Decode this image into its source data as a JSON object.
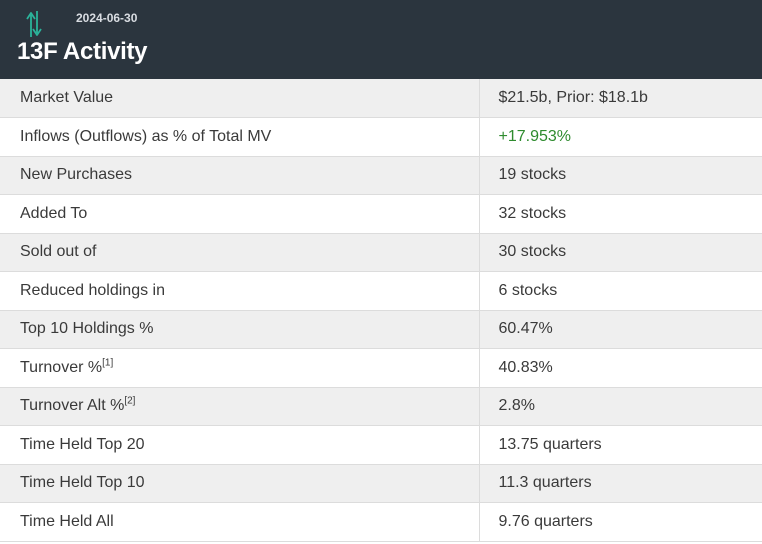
{
  "header": {
    "date": "2024-06-30",
    "title": "13F Activity",
    "icon": "up-down-arrows-icon",
    "accent_color": "#2bb39a",
    "background_color": "#2b353e"
  },
  "rows": [
    {
      "label": "Market Value",
      "sup": "",
      "value": "$21.5b, Prior: $18.1b"
    },
    {
      "label": "Inflows (Outflows) as % of Total MV",
      "sup": "",
      "value": "+17.953%",
      "value_color": "#2e8b2e"
    },
    {
      "label": "New Purchases",
      "sup": "",
      "value": "19 stocks"
    },
    {
      "label": "Added To",
      "sup": "",
      "value": "32 stocks"
    },
    {
      "label": "Sold out of",
      "sup": "",
      "value": "30 stocks"
    },
    {
      "label": "Reduced holdings in",
      "sup": "",
      "value": "6 stocks"
    },
    {
      "label": "Top 10 Holdings %",
      "sup": "",
      "value": "60.47%"
    },
    {
      "label": "Turnover %",
      "sup": "[1]",
      "value": "40.83%"
    },
    {
      "label": "Turnover Alt %",
      "sup": "[2]",
      "value": "2.8%"
    },
    {
      "label": "Time Held Top 20",
      "sup": "",
      "value": "13.75 quarters"
    },
    {
      "label": "Time Held Top 10",
      "sup": "",
      "value": "11.3 quarters"
    },
    {
      "label": "Time Held All",
      "sup": "",
      "value": "9.76 quarters"
    }
  ]
}
